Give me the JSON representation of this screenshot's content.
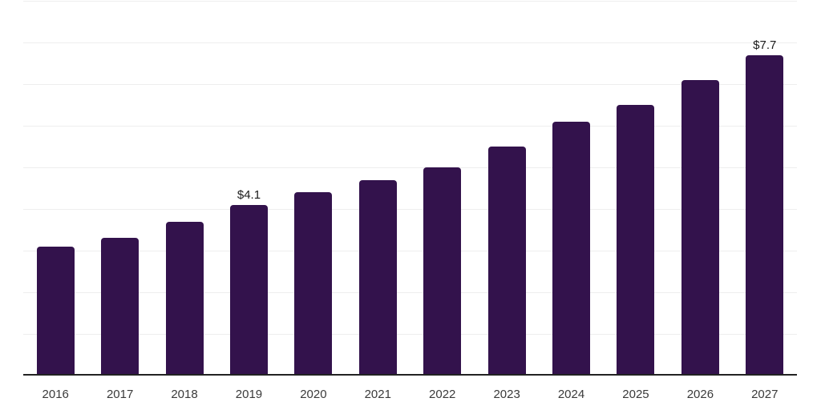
{
  "chart_data": {
    "type": "bar",
    "title": "",
    "xlabel": "",
    "ylabel": "",
    "categories": [
      "2016",
      "2017",
      "2018",
      "2019",
      "2020",
      "2021",
      "2022",
      "2023",
      "2024",
      "2025",
      "2026",
      "2027"
    ],
    "values": [
      3.1,
      3.3,
      3.7,
      4.1,
      4.4,
      4.7,
      5.0,
      5.5,
      6.1,
      6.5,
      7.1,
      7.7
    ],
    "data_labels": [
      {
        "category": "2019",
        "label": "$4.1"
      },
      {
        "category": "2027",
        "label": "$7.7"
      }
    ],
    "ylim": [
      0,
      9
    ],
    "gridline_step": 1,
    "grid": true,
    "legend": "none",
    "colors": {
      "bar": "#33124c",
      "gridline": "#eeeeee",
      "axis": "#222222",
      "tick_label": "#3a3a3a",
      "data_label": "#1a1a1a",
      "background": "#ffffff"
    }
  }
}
